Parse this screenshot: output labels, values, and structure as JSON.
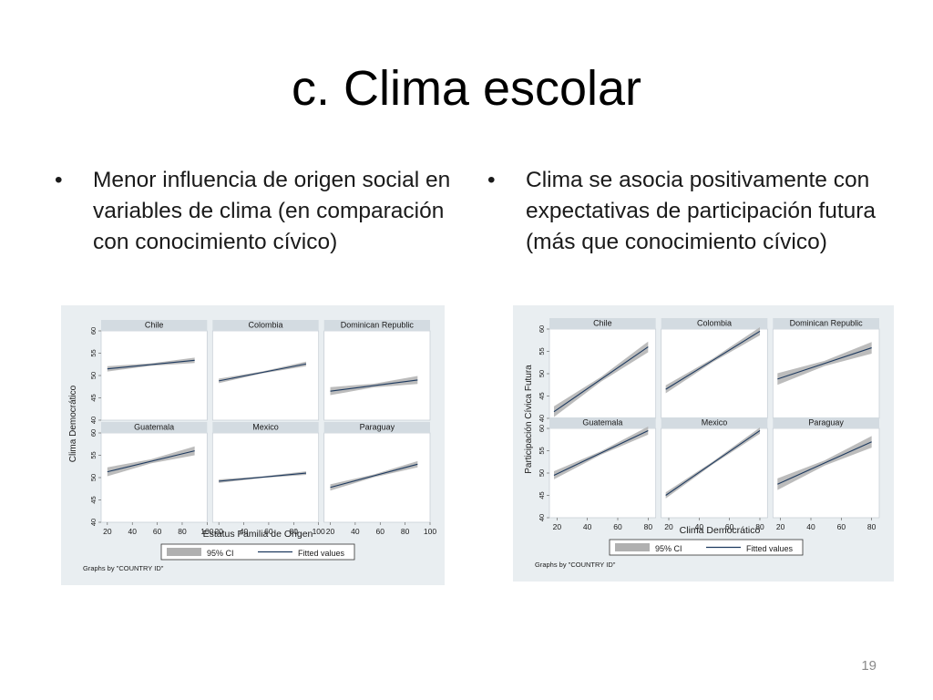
{
  "slide": {
    "title": "c. Clima escolar",
    "bullets": [
      "Menor influencia de origen social en variables de clima (en comparación con conocimiento cívico)",
      "Clima se asocia positivamente con expectativas de participación futura (más que conocimiento cívico)"
    ],
    "bullet_glyph": "•",
    "page_number": "19"
  },
  "chart_data": [
    {
      "type": "line",
      "ylabel": "Clima Democrático",
      "xlabel": "Estatus Familia de Origen",
      "xlim": [
        15,
        100
      ],
      "ylim": [
        40,
        60
      ],
      "xticks": [
        "20",
        "40",
        "60",
        "80",
        "100"
      ],
      "yticks": [
        "40",
        "45",
        "50",
        "55",
        "60"
      ],
      "legend": [
        "95% CI",
        "Fitted values"
      ],
      "note": "Graphs by \"COUNTRY ID\"",
      "panels": [
        {
          "name": "Chile",
          "x": [
            20,
            90
          ],
          "y": [
            51.5,
            53.4
          ],
          "ci": 0.6
        },
        {
          "name": "Colombia",
          "x": [
            20,
            90
          ],
          "y": [
            48.8,
            52.6
          ],
          "ci": 0.5
        },
        {
          "name": "Dominican Republic",
          "x": [
            20,
            90
          ],
          "y": [
            46.5,
            49.0
          ],
          "ci": 0.9
        },
        {
          "name": "Guatemala",
          "x": [
            20,
            90
          ],
          "y": [
            51.3,
            56.0
          ],
          "ci": 1.0
        },
        {
          "name": "Mexico",
          "x": [
            20,
            90
          ],
          "y": [
            49.2,
            51.0
          ],
          "ci": 0.4
        },
        {
          "name": "Paraguay",
          "x": [
            20,
            90
          ],
          "y": [
            47.8,
            53.0
          ],
          "ci": 0.7
        }
      ]
    },
    {
      "type": "line",
      "ylabel": "Participación Cívica Futura",
      "xlabel": "Clima Democrático",
      "xlim": [
        15,
        85
      ],
      "ylim": [
        40,
        60
      ],
      "xticks": [
        "20",
        "40",
        "60",
        "80"
      ],
      "yticks": [
        "40",
        "45",
        "50",
        "55",
        "60"
      ],
      "legend": [
        "95% CI",
        "Fitted values"
      ],
      "note": "Graphs by \"COUNTRY ID\"",
      "panels": [
        {
          "name": "Chile",
          "x": [
            18,
            80
          ],
          "y": [
            41.5,
            56.0
          ],
          "ci": 1.2
        },
        {
          "name": "Colombia",
          "x": [
            18,
            80
          ],
          "y": [
            46.5,
            59.5
          ],
          "ci": 0.9
        },
        {
          "name": "Dominican Republic",
          "x": [
            18,
            80
          ],
          "y": [
            48.8,
            55.8
          ],
          "ci": 1.3
        },
        {
          "name": "Guatemala",
          "x": [
            18,
            80
          ],
          "y": [
            49.5,
            59.5
          ],
          "ci": 0.9
        },
        {
          "name": "Mexico",
          "x": [
            18,
            80
          ],
          "y": [
            45.0,
            59.5
          ],
          "ci": 0.7
        },
        {
          "name": "Paraguay",
          "x": [
            18,
            80
          ],
          "y": [
            47.5,
            57.0
          ],
          "ci": 1.3
        }
      ]
    }
  ],
  "colors": {
    "panel_bg": "#e9eef1",
    "plot_bg": "#ffffff",
    "strip_bg": "#d3dbe1",
    "ci_band": "#b0b0b0",
    "fit_line": "#1e3a5f",
    "text": "#1a1a1a"
  }
}
